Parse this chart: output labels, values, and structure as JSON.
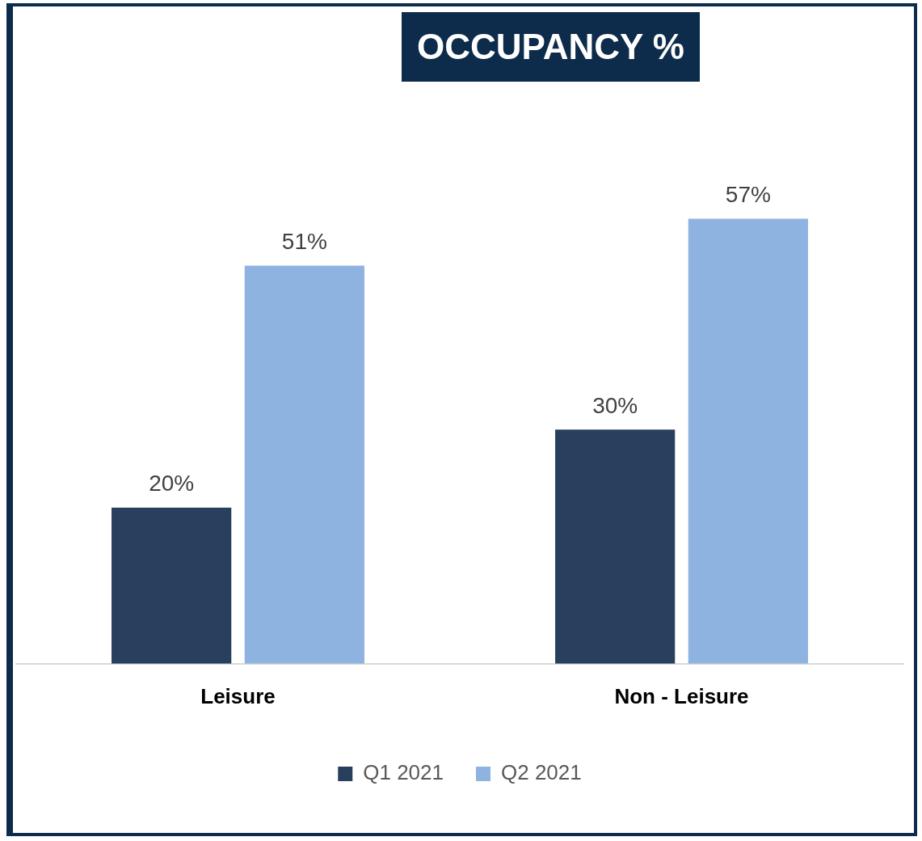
{
  "chart_data": {
    "type": "bar",
    "title": "OCCUPANCY %",
    "categories": [
      "Leisure",
      "Non - Leisure"
    ],
    "series": [
      {
        "name": "Q1 2021",
        "color": "#283f5e",
        "values": [
          20,
          30
        ],
        "value_labels": [
          "20%",
          "30%"
        ]
      },
      {
        "name": "Q2 2021",
        "color": "#8fb3e0",
        "values": [
          51,
          57
        ],
        "value_labels": [
          "51%",
          "57%"
        ]
      }
    ],
    "legend": "bottom"
  }
}
